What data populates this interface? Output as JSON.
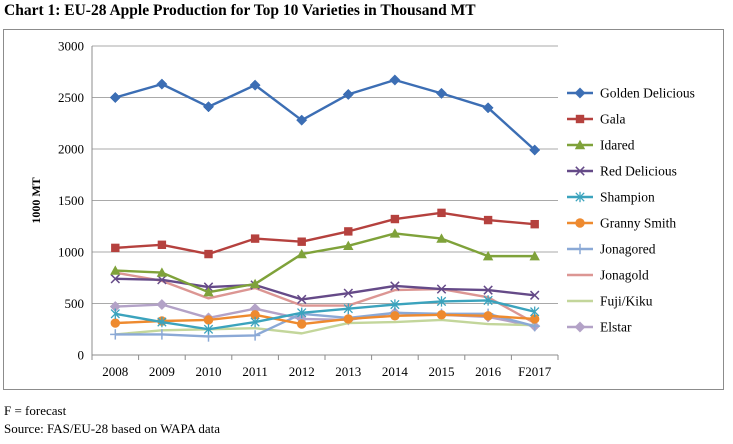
{
  "title": "Chart 1: EU-28 Apple Production for Top 10 Varieties in Thousand MT",
  "footnote": {
    "line1": "F = forecast",
    "line2": "Source: FAS/EU-28 based on WAPA data"
  },
  "chart_data": {
    "type": "line",
    "title": "Chart 1: EU-28 Apple Production for Top 10 Varieties in Thousand MT",
    "xlabel": "",
    "ylabel": "1000 MT",
    "ylim": [
      0,
      3000
    ],
    "yticks": [
      0,
      500,
      1000,
      1500,
      2000,
      2500,
      3000
    ],
    "grid": true,
    "legend": "right",
    "categories": [
      "2008",
      "2009",
      "2010",
      "2011",
      "2012",
      "2013",
      "2014",
      "2015",
      "2016",
      "F2017"
    ],
    "series": [
      {
        "name": "Golden Delicious",
        "color": "#3c6eb4",
        "marker": "diamond",
        "values": [
          2500,
          2630,
          2410,
          2620,
          2280,
          2530,
          2670,
          2540,
          2400,
          1990
        ]
      },
      {
        "name": "Gala",
        "color": "#b5413e",
        "marker": "square",
        "values": [
          1040,
          1070,
          980,
          1130,
          1100,
          1200,
          1320,
          1380,
          1310,
          1270
        ]
      },
      {
        "name": "Idared",
        "color": "#7fa23a",
        "marker": "triangle",
        "values": [
          820,
          800,
          610,
          690,
          980,
          1060,
          1180,
          1130,
          960,
          960
        ]
      },
      {
        "name": "Red Delicious",
        "color": "#654a88",
        "marker": "x",
        "values": [
          740,
          730,
          660,
          680,
          540,
          600,
          670,
          640,
          630,
          580
        ]
      },
      {
        "name": "Shampion",
        "color": "#3ba3bd",
        "marker": "asterisk",
        "values": [
          400,
          320,
          250,
          320,
          410,
          450,
          490,
          520,
          530,
          420
        ]
      },
      {
        "name": "Granny Smith",
        "color": "#ee8a2f",
        "marker": "circle",
        "values": [
          310,
          330,
          340,
          390,
          300,
          350,
          380,
          390,
          380,
          350
        ]
      },
      {
        "name": "Jonagored",
        "color": "#8ba9d6",
        "marker": "plus",
        "values": [
          200,
          200,
          180,
          190,
          400,
          360,
          410,
          400,
          400,
          280
        ]
      },
      {
        "name": "Jonagold",
        "color": "#dc9693",
        "marker": "none",
        "values": [
          800,
          720,
          550,
          650,
          480,
          480,
          630,
          640,
          560,
          310
        ]
      },
      {
        "name": "Fuji/Kiku",
        "color": "#c3d69b",
        "marker": "none",
        "values": [
          200,
          240,
          250,
          260,
          210,
          310,
          320,
          340,
          300,
          290
        ]
      },
      {
        "name": "Elstar",
        "color": "#b3a2c7",
        "marker": "diamond",
        "values": [
          470,
          490,
          360,
          450,
          350,
          340,
          410,
          390,
          370,
          280
        ]
      }
    ]
  }
}
